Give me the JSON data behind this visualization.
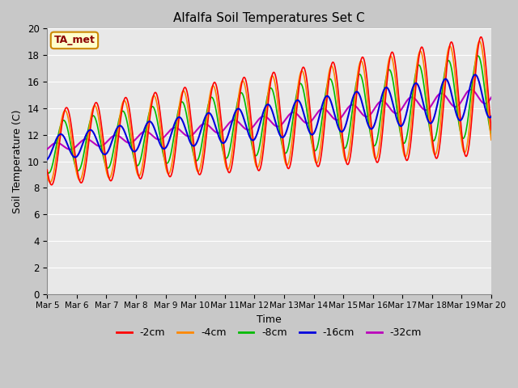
{
  "title": "Alfalfa Soil Temperatures Set C",
  "xlabel": "Time",
  "ylabel": "Soil Temperature (C)",
  "ylim": [
    0,
    20
  ],
  "series": [
    {
      "label": "-2cm",
      "color": "#ff0000"
    },
    {
      "label": "-4cm",
      "color": "#ff8800"
    },
    {
      "label": "-8cm",
      "color": "#00bb00"
    },
    {
      "label": "-16cm",
      "color": "#0000dd"
    },
    {
      "label": "-32cm",
      "color": "#bb00bb"
    }
  ],
  "xtick_labels": [
    "Mar 5",
    "Mar 6",
    "Mar 7",
    "Mar 8",
    "Mar 9",
    "Mar 10",
    "Mar 11",
    "Mar 12",
    "Mar 13",
    "Mar 14",
    "Mar 15",
    "Mar 16",
    "Mar 17",
    "Mar 18",
    "Mar 19",
    "Mar 20"
  ],
  "annotation_text": "TA_met",
  "annotation_bg": "#ffffcc",
  "annotation_border": "#cc8800",
  "fig_facecolor": "#c8c8c8",
  "ax_facecolor": "#e8e8e8",
  "grid_color": "#ffffff"
}
